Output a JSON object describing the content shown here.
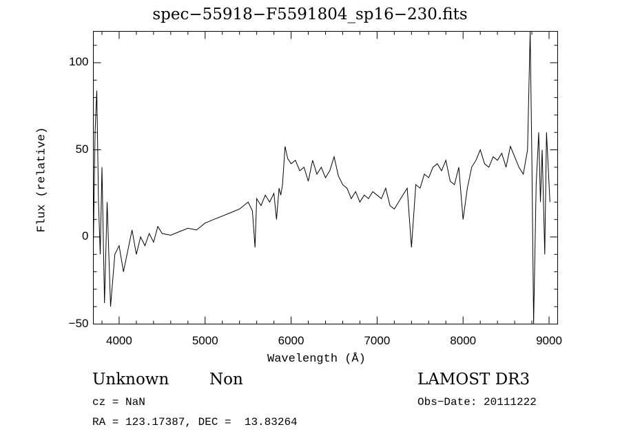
{
  "chart_data": {
    "type": "line",
    "title": "spec−55918−F5591804_sp16−230.fits",
    "xlabel": "Wavelength (Å)",
    "ylabel": "Flux (relative)",
    "xlim": [
      3700,
      9100
    ],
    "ylim": [
      -50,
      118
    ],
    "x_ticks": [
      4000,
      5000,
      6000,
      7000,
      8000,
      9000
    ],
    "y_ticks": [
      -50,
      0,
      50,
      100
    ],
    "x_tick_labels": [
      "4000",
      "5000",
      "6000",
      "7000",
      "8000",
      "9000"
    ],
    "y_tick_labels": [
      "−50",
      "0",
      "50",
      "100"
    ],
    "grid": false,
    "series": [
      {
        "x": [
          3700,
          3720,
          3740,
          3760,
          3780,
          3800,
          3830,
          3860,
          3900,
          3950,
          4000,
          4050,
          4100,
          4150,
          4200,
          4250,
          4300,
          4350,
          4400,
          4450,
          4500,
          4600,
          4700,
          4800,
          4900,
          5000,
          5100,
          5200,
          5300,
          5400,
          5500,
          5550,
          5580,
          5600,
          5650,
          5700,
          5750,
          5800,
          5830,
          5860,
          5880,
          5900,
          5930,
          5960,
          6000,
          6050,
          6100,
          6150,
          6200,
          6250,
          6300,
          6350,
          6400,
          6450,
          6500,
          6550,
          6600,
          6650,
          6700,
          6750,
          6800,
          6850,
          6900,
          6950,
          7000,
          7050,
          7100,
          7150,
          7200,
          7250,
          7300,
          7350,
          7400,
          7450,
          7500,
          7550,
          7600,
          7650,
          7700,
          7750,
          7800,
          7850,
          7900,
          7950,
          8000,
          8050,
          8100,
          8150,
          8200,
          8250,
          8300,
          8350,
          8400,
          8450,
          8500,
          8550,
          8600,
          8650,
          8700,
          8750,
          8780,
          8800,
          8820,
          8850,
          8880,
          8900,
          8920,
          8950,
          8970,
          8990,
          9010
        ],
        "y": [
          -5,
          60,
          84,
          20,
          -10,
          40,
          -38,
          20,
          -40,
          -10,
          -5,
          -20,
          -8,
          4,
          -10,
          0,
          -5,
          2,
          -3,
          6,
          2,
          1,
          3,
          5,
          4,
          8,
          10,
          12,
          14,
          16,
          20,
          15,
          -6,
          22,
          18,
          24,
          20,
          25,
          10,
          28,
          24,
          30,
          52,
          45,
          42,
          44,
          38,
          40,
          32,
          44,
          36,
          40,
          34,
          38,
          46,
          35,
          30,
          28,
          22,
          26,
          20,
          24,
          22,
          26,
          24,
          22,
          28,
          18,
          16,
          20,
          24,
          28,
          -6,
          30,
          28,
          36,
          34,
          40,
          42,
          38,
          44,
          32,
          30,
          40,
          10,
          28,
          40,
          44,
          50,
          42,
          40,
          46,
          44,
          48,
          40,
          52,
          46,
          40,
          36,
          50,
          118,
          44,
          -50,
          30,
          60,
          20,
          50,
          -10,
          60,
          40,
          20
        ]
      }
    ]
  },
  "annotations": {
    "object_class": "Unknown",
    "object_subclass": "Non",
    "redshift": "cz = NaN",
    "coordinates": "RA = 123.17387, DEC =  13.83264",
    "survey": "LAMOST DR3",
    "obs_date": "Obs−Date: 20111222"
  }
}
